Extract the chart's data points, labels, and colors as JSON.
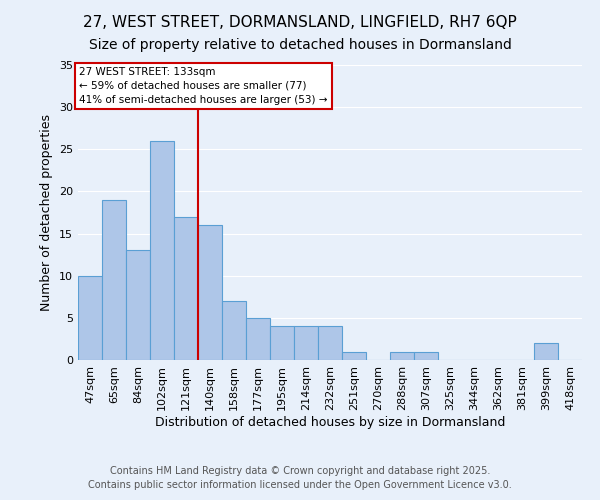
{
  "title": "27, WEST STREET, DORMANSLAND, LINGFIELD, RH7 6QP",
  "subtitle": "Size of property relative to detached houses in Dormansland",
  "xlabel": "Distribution of detached houses by size in Dormansland",
  "ylabel": "Number of detached properties",
  "bar_labels": [
    "47sqm",
    "65sqm",
    "84sqm",
    "102sqm",
    "121sqm",
    "140sqm",
    "158sqm",
    "177sqm",
    "195sqm",
    "214sqm",
    "232sqm",
    "251sqm",
    "270sqm",
    "288sqm",
    "307sqm",
    "325sqm",
    "344sqm",
    "362sqm",
    "381sqm",
    "399sqm",
    "418sqm"
  ],
  "bar_values": [
    10,
    19,
    13,
    26,
    17,
    16,
    7,
    5,
    4,
    4,
    4,
    1,
    0,
    1,
    1,
    0,
    0,
    0,
    0,
    2,
    0
  ],
  "bar_color": "#aec6e8",
  "bar_edge_color": "#5a9fd4",
  "vline_color": "#cc0000",
  "annotation_title": "27 WEST STREET: 133sqm",
  "annotation_line1": "← 59% of detached houses are smaller (77)",
  "annotation_line2": "41% of semi-detached houses are larger (53) →",
  "ylim": [
    0,
    35
  ],
  "yticks": [
    0,
    5,
    10,
    15,
    20,
    25,
    30,
    35
  ],
  "footer1": "Contains HM Land Registry data © Crown copyright and database right 2025.",
  "footer2": "Contains public sector information licensed under the Open Government Licence v3.0.",
  "bg_color": "#e8f0fa",
  "title_fontsize": 11,
  "subtitle_fontsize": 10,
  "axis_label_fontsize": 9,
  "tick_fontsize": 8,
  "footer_fontsize": 7
}
